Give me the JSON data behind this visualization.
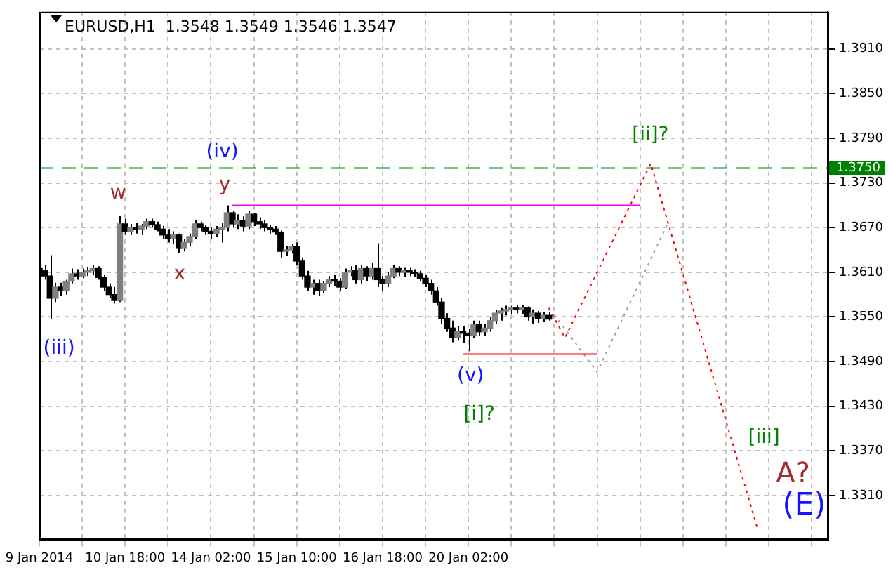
{
  "chart_data": {
    "type": "candlestick",
    "title": "EURUSD,H1  1.3548 1.3549 1.3546 1.3547",
    "color": "#000000",
    "colors": [
      "#000000",
      "#000000",
      "#000000",
      "#808080",
      "#000000",
      "#808080",
      "#808080",
      "#000000",
      "#808080",
      "#808080",
      "#808080",
      "#000000",
      "#000000",
      "#000000",
      "#000000",
      "#808080",
      "#000000",
      "#808080",
      "#000000",
      "#808080",
      "#808080",
      "#000000",
      "#000000",
      "#000000",
      "#000000",
      "#808080",
      "#000000",
      "#808080",
      "#808080",
      "#808080",
      "#000000",
      "#000000",
      "#000000",
      "#808080",
      "#808080",
      "#808080",
      "#000000",
      "#808080",
      "#000000",
      "#808080",
      "#000000",
      "#000000",
      "#000000",
      "#000000",
      "#000000",
      "#000000",
      "#808080",
      "#808080",
      "#000000",
      "#000000",
      "#000000",
      "#808080",
      "#000000",
      "#808080",
      "#808080",
      "#000000",
      "#000000",
      "#808080",
      "#808080",
      "#000000",
      "#808080",
      "#000000",
      "#808080",
      "#000000",
      "#000000",
      "#808080",
      "#808080",
      "#000000",
      "#808080",
      "#000000",
      "#000000",
      "#000000",
      "#000000",
      "#000000",
      "#000000",
      "#000000",
      "#000000",
      "#000000",
      "#808080",
      "#000000",
      "#000000",
      "#808080",
      "#000000",
      "#808080",
      "#808080",
      "#808080",
      "#808080",
      "#808080",
      "#808080",
      "#000000",
      "#808080",
      "#000000",
      "#808080",
      "#000000",
      "#808080",
      "#000000",
      null,
      null,
      null,
      null,
      null,
      null,
      null,
      null,
      null,
      null,
      null,
      null,
      null,
      null,
      null,
      null,
      null,
      null,
      null,
      null,
      null,
      null,
      null,
      null,
      null,
      null,
      null,
      null,
      null,
      null,
      null,
      null,
      null,
      null,
      null,
      null,
      null,
      null,
      null,
      null,
      null,
      null,
      null,
      null,
      null,
      null,
      null,
      null,
      null,
      null,
      null,
      null
    ],
    "categories": [
      "9 Jan 2014",
      null,
      null,
      null,
      null,
      null,
      null,
      null,
      null,
      null,
      null,
      null,
      null,
      null,
      null,
      null,
      "10 Jan 18:00",
      null,
      null,
      null,
      null,
      null,
      null,
      null,
      null,
      null,
      null,
      null,
      null,
      null,
      null,
      null,
      "14 Jan 02:00",
      null,
      null,
      null,
      null,
      null,
      null,
      null,
      null,
      null,
      null,
      null,
      null,
      null,
      null,
      null,
      "15 Jan 10:00",
      null,
      null,
      null,
      null,
      null,
      null,
      null,
      null,
      null,
      null,
      null,
      null,
      null,
      null,
      null,
      "16 Jan 18:00",
      null,
      null,
      null,
      null,
      null,
      null,
      null,
      null,
      null,
      null,
      null,
      null,
      null,
      null,
      null,
      "20 Jan 02:00",
      null,
      null,
      null,
      null,
      null,
      null,
      null,
      null,
      null,
      null,
      null,
      null,
      null,
      null,
      null,
      null,
      null,
      null,
      null,
      null,
      null,
      null,
      null,
      null,
      null,
      null,
      null,
      null,
      null,
      null,
      null,
      null,
      null,
      null,
      null,
      null,
      null,
      null,
      null,
      null,
      null,
      null,
      null,
      null,
      null,
      null,
      null,
      null,
      null,
      null,
      null,
      null,
      null,
      null,
      null,
      null,
      null,
      null,
      null,
      null,
      null,
      null,
      null,
      null,
      null,
      null,
      null
    ],
    "ohlc": [
      [
        1.3615,
        1.3622,
        1.3605,
        1.3612
      ],
      [
        1.3612,
        1.362,
        1.36,
        1.3605
      ],
      [
        1.3605,
        1.3633,
        1.3547,
        1.3575
      ],
      [
        1.3575,
        1.3596,
        1.357,
        1.359
      ],
      [
        1.359,
        1.3596,
        1.3578,
        1.3585
      ],
      [
        1.3585,
        1.36,
        1.358,
        1.3598
      ],
      [
        1.3598,
        1.3615,
        1.3595,
        1.3608
      ],
      [
        1.3608,
        1.3614,
        1.36,
        1.3605
      ],
      [
        1.3605,
        1.3615,
        1.3602,
        1.361
      ],
      [
        1.361,
        1.3617,
        1.3605,
        1.3612
      ],
      [
        1.3612,
        1.362,
        1.3606,
        1.3615
      ],
      [
        1.3615,
        1.3618,
        1.36,
        1.3603
      ],
      [
        1.3603,
        1.3606,
        1.3585,
        1.359
      ],
      [
        1.359,
        1.3595,
        1.3575,
        1.358
      ],
      [
        1.358,
        1.359,
        1.3568,
        1.3572
      ],
      [
        1.3572,
        1.3686,
        1.357,
        1.3675
      ],
      [
        1.3675,
        1.3682,
        1.366,
        1.3665
      ],
      [
        1.3665,
        1.3675,
        1.366,
        1.367
      ],
      [
        1.367,
        1.3676,
        1.3662,
        1.3668
      ],
      [
        1.3668,
        1.3675,
        1.366,
        1.3672
      ],
      [
        1.3672,
        1.3682,
        1.3668,
        1.3678
      ],
      [
        1.3678,
        1.3682,
        1.367,
        1.3674
      ],
      [
        1.3674,
        1.3678,
        1.3665,
        1.3668
      ],
      [
        1.3668,
        1.3672,
        1.3655,
        1.366
      ],
      [
        1.366,
        1.3668,
        1.365,
        1.3655
      ],
      [
        1.3655,
        1.3665,
        1.3648,
        1.366
      ],
      [
        1.366,
        1.3662,
        1.3636,
        1.3642
      ],
      [
        1.3642,
        1.3655,
        1.3638,
        1.365
      ],
      [
        1.365,
        1.3662,
        1.3645,
        1.3658
      ],
      [
        1.3658,
        1.368,
        1.3655,
        1.3675
      ],
      [
        1.3675,
        1.3678,
        1.3665,
        1.367
      ],
      [
        1.367,
        1.3674,
        1.366,
        1.3665
      ],
      [
        1.3665,
        1.367,
        1.3655,
        1.3662
      ],
      [
        1.3662,
        1.3672,
        1.3658,
        1.3668
      ],
      [
        1.3668,
        1.3676,
        1.365,
        1.367
      ],
      [
        1.367,
        1.37,
        1.3665,
        1.369
      ],
      [
        1.369,
        1.3692,
        1.367,
        1.3675
      ],
      [
        1.3675,
        1.3688,
        1.3668,
        1.368
      ],
      [
        1.368,
        1.3685,
        1.3665,
        1.3672
      ],
      [
        1.3672,
        1.3692,
        1.3668,
        1.3688
      ],
      [
        1.3688,
        1.369,
        1.3672,
        1.3678
      ],
      [
        1.3678,
        1.3684,
        1.3668,
        1.3675
      ],
      [
        1.3675,
        1.368,
        1.3665,
        1.367
      ],
      [
        1.367,
        1.3674,
        1.3662,
        1.3668
      ],
      [
        1.3668,
        1.3672,
        1.366,
        1.3664
      ],
      [
        1.3664,
        1.3666,
        1.363,
        1.3638
      ],
      [
        1.3638,
        1.3645,
        1.3632,
        1.364
      ],
      [
        1.364,
        1.3648,
        1.3635,
        1.3645
      ],
      [
        1.3645,
        1.365,
        1.362,
        1.3625
      ],
      [
        1.3625,
        1.363,
        1.36,
        1.3605
      ],
      [
        1.3605,
        1.3612,
        1.3585,
        1.359
      ],
      [
        1.359,
        1.36,
        1.358,
        1.3595
      ],
      [
        1.3595,
        1.36,
        1.3578,
        1.3585
      ],
      [
        1.3585,
        1.3598,
        1.3582,
        1.3595
      ],
      [
        1.3595,
        1.3605,
        1.359,
        1.36
      ],
      [
        1.36,
        1.3606,
        1.3592,
        1.3598
      ],
      [
        1.3598,
        1.3602,
        1.3585,
        1.359
      ],
      [
        1.359,
        1.3615,
        1.3588,
        1.361
      ],
      [
        1.361,
        1.3618,
        1.3605,
        1.3612
      ],
      [
        1.3612,
        1.362,
        1.3595,
        1.36
      ],
      [
        1.36,
        1.362,
        1.3595,
        1.3615
      ],
      [
        1.3615,
        1.3618,
        1.3598,
        1.3605
      ],
      [
        1.3605,
        1.3622,
        1.36,
        1.3615
      ],
      [
        1.3615,
        1.3649,
        1.359,
        1.36
      ],
      [
        1.36,
        1.3605,
        1.3585,
        1.3595
      ],
      [
        1.3595,
        1.361,
        1.359,
        1.3605
      ],
      [
        1.3605,
        1.362,
        1.3602,
        1.3615
      ],
      [
        1.3615,
        1.3618,
        1.3605,
        1.361
      ],
      [
        1.361,
        1.3616,
        1.3604,
        1.3612
      ],
      [
        1.3612,
        1.3616,
        1.3605,
        1.361
      ],
      [
        1.361,
        1.3614,
        1.3604,
        1.3608
      ],
      [
        1.3608,
        1.3612,
        1.3598,
        1.3602
      ],
      [
        1.3602,
        1.3606,
        1.359,
        1.3595
      ],
      [
        1.3595,
        1.36,
        1.358,
        1.3585
      ],
      [
        1.3585,
        1.359,
        1.3565,
        1.357
      ],
      [
        1.357,
        1.3575,
        1.354,
        1.3548
      ],
      [
        1.3548,
        1.3555,
        1.353,
        1.3535
      ],
      [
        1.3535,
        1.3545,
        1.3516,
        1.3522
      ],
      [
        1.3522,
        1.3538,
        1.3518,
        1.353
      ],
      [
        1.353,
        1.3538,
        1.3515,
        1.3528
      ],
      [
        1.3528,
        1.3534,
        1.3504,
        1.3525
      ],
      [
        1.3525,
        1.3545,
        1.3522,
        1.354
      ],
      [
        1.354,
        1.3545,
        1.3525,
        1.353
      ],
      [
        1.353,
        1.354,
        1.3525,
        1.3535
      ],
      [
        1.3535,
        1.355,
        1.353,
        1.3545
      ],
      [
        1.3545,
        1.3559,
        1.354,
        1.3555
      ],
      [
        1.3555,
        1.3562,
        1.3545,
        1.3558
      ],
      [
        1.3558,
        1.3565,
        1.3552,
        1.356
      ],
      [
        1.356,
        1.3565,
        1.3553,
        1.3562
      ],
      [
        1.3562,
        1.3566,
        1.3555,
        1.356
      ],
      [
        1.356,
        1.3566,
        1.3554,
        1.3562
      ],
      [
        1.3562,
        1.3564,
        1.3545,
        1.355
      ],
      [
        1.355,
        1.356,
        1.354,
        1.3555
      ],
      [
        1.3555,
        1.3558,
        1.3542,
        1.3548
      ],
      [
        1.3548,
        1.3556,
        1.3543,
        1.3552
      ],
      [
        1.3552,
        1.3556,
        1.3545,
        1.3547
      ],
      null,
      null,
      null,
      null,
      null,
      null,
      null,
      null,
      null,
      null,
      null,
      null,
      null,
      null,
      null,
      null,
      null,
      null,
      null,
      null,
      null,
      null,
      null,
      null,
      null,
      null,
      null,
      null,
      null,
      null,
      null,
      null,
      null,
      null,
      null,
      null,
      null,
      null,
      null,
      null,
      null,
      null,
      null,
      null,
      null,
      null,
      null,
      null,
      null,
      null,
      null,
      null
    ],
    "series": [
      {
        "type": "line",
        "color": "#ff00ff",
        "line_style": "solid",
        "values": [
          null,
          null,
          null,
          null,
          null,
          null,
          null,
          null,
          null,
          null,
          null,
          null,
          null,
          null,
          null,
          null,
          null,
          null,
          null,
          null,
          null,
          null,
          null,
          null,
          null,
          null,
          null,
          null,
          null,
          null,
          null,
          null,
          null,
          null,
          null,
          null,
          1.37,
          null,
          null,
          null,
          null,
          null,
          null,
          null,
          null,
          null,
          null,
          null,
          null,
          null,
          null,
          null,
          null,
          null,
          null,
          null,
          null,
          null,
          null,
          null,
          null,
          null,
          null,
          null,
          null,
          null,
          null,
          null,
          null,
          null,
          null,
          null,
          null,
          null,
          null,
          null,
          null,
          null,
          null,
          null,
          null,
          null,
          null,
          null,
          null,
          null,
          null,
          null,
          null,
          null,
          null,
          null,
          null,
          null,
          null,
          null,
          null,
          null,
          null,
          null,
          null,
          null,
          null,
          null,
          null,
          null,
          null,
          null,
          null,
          null,
          null,
          null,
          1.37,
          null,
          null,
          null,
          null,
          null,
          null,
          null,
          null,
          null,
          null,
          null,
          null,
          null,
          null,
          null,
          null,
          null,
          null,
          null,
          null,
          null,
          null,
          null,
          null,
          null,
          null,
          null,
          null,
          null,
          null,
          null,
          null,
          null,
          null,
          null
        ]
      },
      {
        "type": "line",
        "color": "#ff0000",
        "line_style": "solid",
        "values": [
          null,
          null,
          null,
          null,
          null,
          null,
          null,
          null,
          null,
          null,
          null,
          null,
          null,
          null,
          null,
          null,
          null,
          null,
          null,
          null,
          null,
          null,
          null,
          null,
          null,
          null,
          null,
          null,
          null,
          null,
          null,
          null,
          null,
          null,
          null,
          null,
          null,
          null,
          null,
          null,
          null,
          null,
          null,
          null,
          null,
          null,
          null,
          null,
          null,
          null,
          null,
          null,
          null,
          null,
          null,
          null,
          null,
          null,
          null,
          null,
          null,
          null,
          null,
          null,
          null,
          null,
          null,
          null,
          null,
          null,
          null,
          null,
          null,
          null,
          null,
          null,
          null,
          null,
          null,
          1.35,
          null,
          null,
          null,
          null,
          null,
          null,
          null,
          null,
          null,
          null,
          null,
          null,
          null,
          null,
          null,
          null,
          null,
          null,
          null,
          null,
          null,
          null,
          null,
          null,
          1.35,
          null,
          null,
          null,
          null,
          null,
          null,
          null,
          null,
          null,
          null,
          null,
          null,
          null,
          null,
          null,
          null,
          null,
          null,
          null,
          null,
          null,
          null,
          null,
          null,
          null,
          null,
          null,
          null,
          null,
          null,
          null,
          null,
          null,
          null,
          null,
          null,
          null,
          null,
          null,
          null,
          null,
          null,
          null
        ]
      },
      {
        "type": "line",
        "color": "#ff0000",
        "line_style": "dotted",
        "values": [
          null,
          null,
          null,
          null,
          null,
          null,
          null,
          null,
          null,
          null,
          null,
          null,
          null,
          null,
          null,
          null,
          null,
          null,
          null,
          null,
          null,
          null,
          null,
          null,
          null,
          null,
          null,
          null,
          null,
          null,
          null,
          null,
          null,
          null,
          null,
          null,
          null,
          null,
          null,
          null,
          null,
          null,
          null,
          null,
          null,
          null,
          null,
          null,
          null,
          null,
          null,
          null,
          null,
          null,
          null,
          null,
          null,
          null,
          null,
          null,
          null,
          null,
          null,
          null,
          null,
          null,
          null,
          null,
          null,
          null,
          null,
          null,
          null,
          null,
          null,
          null,
          null,
          null,
          null,
          null,
          null,
          null,
          null,
          null,
          null,
          null,
          null,
          null,
          null,
          null,
          null,
          null,
          null,
          null,
          null,
          1.3562,
          null,
          null,
          1.3522,
          null,
          null,
          null,
          null,
          null,
          null,
          null,
          null,
          null,
          null,
          null,
          null,
          null,
          null,
          null,
          1.3756,
          null,
          null,
          null,
          null,
          null,
          null,
          null,
          null,
          null,
          null,
          null,
          null,
          null,
          null,
          null,
          null,
          null,
          null,
          null,
          1.3263,
          null,
          null,
          null,
          null,
          null,
          null,
          null,
          null,
          null,
          null,
          null,
          null,
          null
        ]
      },
      {
        "type": "line",
        "color": "#a0a0a0",
        "line_style": "dotted",
        "values": [
          null,
          null,
          null,
          null,
          null,
          null,
          null,
          null,
          null,
          null,
          null,
          null,
          null,
          null,
          null,
          null,
          null,
          null,
          null,
          null,
          null,
          null,
          null,
          null,
          null,
          null,
          null,
          null,
          null,
          null,
          null,
          null,
          null,
          null,
          null,
          null,
          null,
          null,
          null,
          null,
          null,
          null,
          null,
          null,
          null,
          null,
          null,
          null,
          null,
          null,
          null,
          null,
          null,
          null,
          null,
          null,
          null,
          null,
          null,
          null,
          null,
          null,
          null,
          null,
          null,
          null,
          null,
          null,
          null,
          null,
          null,
          null,
          null,
          null,
          null,
          null,
          null,
          null,
          null,
          null,
          null,
          null,
          null,
          null,
          null,
          null,
          null,
          null,
          null,
          null,
          null,
          null,
          null,
          null,
          null,
          null,
          1.3553,
          null,
          null,
          null,
          null,
          null,
          null,
          null,
          1.3476,
          null,
          null,
          null,
          null,
          null,
          null,
          null,
          null,
          null,
          null,
          null,
          null,
          1.3673,
          null,
          null,
          null,
          null,
          null,
          null,
          null,
          null,
          null,
          null,
          null,
          null,
          null,
          null,
          null,
          null,
          null,
          null,
          null,
          null,
          null,
          null,
          null,
          null,
          null,
          null,
          null,
          null,
          null,
          null
        ]
      }
    ],
    "ylim": [
      1.3251,
      1.396
    ],
    "yticks": [
      {
        "value": 1.331,
        "label": "1.3310"
      },
      {
        "value": 1.337,
        "label": "1.3370"
      },
      {
        "value": 1.343,
        "label": "1.3430"
      },
      {
        "value": 1.349,
        "label": "1.3490"
      },
      {
        "value": 1.355,
        "label": "1.3550"
      },
      {
        "value": 1.361,
        "label": "1.3610"
      },
      {
        "value": 1.367,
        "label": "1.3670"
      },
      {
        "value": 1.373,
        "label": "1.3730"
      },
      {
        "value": 1.379,
        "label": "1.3790"
      },
      {
        "value": 1.385,
        "label": "1.3850"
      },
      {
        "value": 1.391,
        "label": "1.3910"
      }
    ],
    "grid": true,
    "ref_lines": [
      {
        "axis": "y",
        "value": 1.375,
        "label": "1.3750",
        "color": "#008000",
        "line_style": "dashed"
      }
    ],
    "annotations": [
      "(iii)",
      "w",
      "x",
      "y",
      "(iv)",
      "(v)",
      "[i]?",
      "[ii]?",
      "[iii]",
      "A?",
      "(E)"
    ]
  }
}
